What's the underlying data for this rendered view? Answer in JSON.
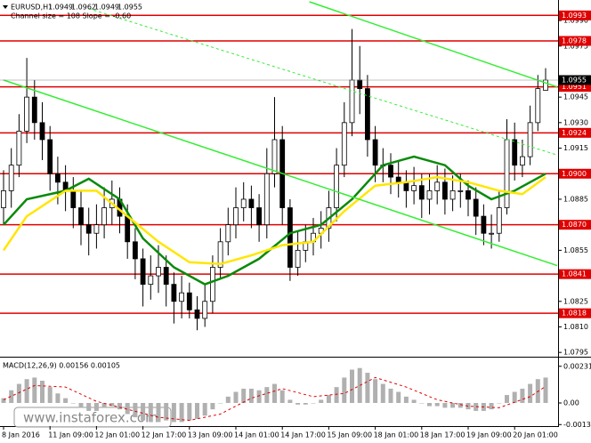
{
  "chart_data": {
    "type": "candlestick",
    "symbol": "EURUSD,H1",
    "ohlc_text": [
      "1.0949",
      "1.0962",
      "1.0949",
      "1.0955"
    ],
    "indicator_text": "Channel size = 108 Slope = -0.60",
    "watermark": "www.instaforex.com",
    "categories": [
      "8 Jan 2016",
      null,
      null,
      null,
      null,
      null,
      "11 Jan 09:00",
      null,
      null,
      null,
      null,
      null,
      "12 Jan 01:00",
      null,
      null,
      null,
      null,
      null,
      "12 Jan 17:00",
      null,
      null,
      null,
      null,
      null,
      "13 Jan 09:00",
      null,
      null,
      null,
      null,
      null,
      "14 Jan 01:00",
      null,
      null,
      null,
      null,
      null,
      "14 Jan 17:00",
      null,
      null,
      null,
      null,
      null,
      "15 Jan 09:00",
      null,
      null,
      null,
      null,
      null,
      "18 Jan 01:00",
      null,
      null,
      null,
      null,
      null,
      "18 Jan 17:00",
      null,
      null,
      null,
      null,
      null,
      "19 Jan 09:00",
      null,
      null,
      null,
      null,
      null,
      "20 Jan 01:00",
      null,
      null,
      null,
      null
    ],
    "open": [
      1.088,
      1.089,
      1.0905,
      1.0925,
      1.0945,
      1.093,
      1.092,
      1.09,
      1.0895,
      1.089,
      1.088,
      1.087,
      1.0865,
      1.087,
      1.088,
      1.0885,
      1.0875,
      1.086,
      1.085,
      1.0835,
      1.084,
      1.0845,
      1.0835,
      1.0825,
      1.083,
      1.082,
      1.0815,
      1.0825,
      1.0845,
      1.086,
      1.087,
      1.088,
      1.0885,
      1.088,
      1.087,
      1.09,
      1.092,
      1.088,
      1.0845,
      1.0855,
      1.086,
      1.0865,
      1.0868,
      1.088,
      1.0905,
      1.093,
      1.0955,
      1.095,
      1.092,
      1.0905,
      1.0905,
      1.0898,
      1.0895,
      1.089,
      1.0893,
      1.0885,
      1.089,
      1.0895,
      1.0885,
      1.089,
      1.089,
      1.0885,
      1.0875,
      1.0865,
      1.0865,
      1.088,
      1.092,
      1.0905,
      1.091,
      1.093,
      1.0949
    ],
    "high": [
      1.0902,
      1.0915,
      1.0935,
      1.0968,
      1.0955,
      1.0942,
      1.0928,
      1.091,
      1.0905,
      1.0898,
      1.089,
      1.088,
      1.0882,
      1.0892,
      1.0896,
      1.0892,
      1.0882,
      1.0868,
      1.0856,
      1.0852,
      1.0858,
      1.0852,
      1.0842,
      1.084,
      1.0836,
      1.0828,
      1.0835,
      1.0852,
      1.0868,
      1.088,
      1.0892,
      1.0895,
      1.0893,
      1.0888,
      1.0915,
      1.0945,
      1.0928,
      1.0885,
      1.0866,
      1.087,
      1.0874,
      1.0878,
      1.089,
      1.0915,
      1.0942,
      1.0985,
      1.0975,
      1.0958,
      1.0928,
      1.0915,
      1.0912,
      1.0908,
      1.0902,
      1.0904,
      1.09,
      1.09,
      1.0905,
      1.0903,
      1.0899,
      1.09,
      1.0896,
      1.0892,
      1.0882,
      1.0876,
      1.089,
      1.0932,
      1.093,
      1.092,
      1.094,
      1.0958,
      1.0962
    ],
    "low": [
      1.087,
      1.088,
      1.0898,
      1.0918,
      1.092,
      1.0908,
      1.089,
      1.0882,
      1.0878,
      1.0868,
      1.0858,
      1.0852,
      1.0856,
      1.0862,
      1.087,
      1.0865,
      1.085,
      1.0838,
      1.0822,
      1.0826,
      1.083,
      1.0822,
      1.0812,
      1.0815,
      1.0815,
      1.0808,
      1.081,
      1.0818,
      1.0838,
      1.0852,
      1.0862,
      1.0872,
      1.0868,
      1.086,
      1.0862,
      1.0892,
      1.087,
      1.0837,
      1.084,
      1.0848,
      1.0852,
      1.0856,
      1.086,
      1.0872,
      1.0898,
      1.0922,
      1.0935,
      1.091,
      1.0895,
      1.0895,
      1.0888,
      1.0886,
      1.088,
      1.0882,
      1.0874,
      1.0876,
      1.0882,
      1.0876,
      1.0878,
      1.088,
      1.0875,
      1.0864,
      1.0858,
      1.0856,
      1.086,
      1.0876,
      1.0896,
      1.0898,
      1.0905,
      1.0925,
      1.0949
    ],
    "close": [
      1.089,
      1.0905,
      1.0925,
      1.0945,
      1.093,
      1.092,
      1.09,
      1.0895,
      1.089,
      1.088,
      1.087,
      1.0865,
      1.087,
      1.088,
      1.0885,
      1.0875,
      1.086,
      1.085,
      1.0835,
      1.084,
      1.0845,
      1.0835,
      1.0825,
      1.083,
      1.082,
      1.0815,
      1.0825,
      1.0845,
      1.086,
      1.087,
      1.088,
      1.0885,
      1.088,
      1.087,
      1.09,
      1.092,
      1.088,
      1.0845,
      1.0855,
      1.086,
      1.0865,
      1.0868,
      1.088,
      1.0905,
      1.093,
      1.0955,
      1.095,
      1.092,
      1.0905,
      1.0905,
      1.0898,
      1.0895,
      1.089,
      1.0893,
      1.0885,
      1.089,
      1.0895,
      1.0885,
      1.089,
      1.089,
      1.0885,
      1.0875,
      1.0865,
      1.0865,
      1.088,
      1.092,
      1.0905,
      1.091,
      1.093,
      1.095,
      1.0955
    ],
    "ylim": [
      1.0793,
      1.1001
    ],
    "yticks": [
      {
        "value": 1.099,
        "label": "1.0990"
      },
      {
        "value": 1.0975,
        "label": "1.0975"
      },
      {
        "value": 1.0945,
        "label": "1.0945"
      },
      {
        "value": 1.093,
        "label": "1.0930"
      },
      {
        "value": 1.0915,
        "label": "1.0915"
      },
      {
        "value": 1.0885,
        "label": "1.0885"
      },
      {
        "value": 1.0855,
        "label": "1.0855"
      },
      {
        "value": 1.0825,
        "label": "1.0825"
      },
      {
        "value": 1.081,
        "label": "1.0810"
      },
      {
        "value": 1.0795,
        "label": "1.0795"
      }
    ],
    "levels": [
      {
        "value": 1.0993,
        "label": "1.0993"
      },
      {
        "value": 1.0978,
        "label": "1.0978"
      },
      {
        "value": 1.0951,
        "label": "1.0951"
      },
      {
        "value": 1.0924,
        "label": "1.0924"
      },
      {
        "value": 1.09,
        "label": "1.0900"
      },
      {
        "value": 1.087,
        "label": "1.0870"
      },
      {
        "value": 1.0841,
        "label": "1.0841"
      },
      {
        "value": 1.0818,
        "label": "1.0818"
      }
    ],
    "level_color": "#e00000",
    "current_price": {
      "value": 1.0955,
      "label": "1.0955"
    },
    "lines": [
      {
        "color": "#0a8a0a",
        "width": 2.5,
        "x": [
          0,
          3,
          8,
          11,
          15,
          18,
          22,
          26,
          29,
          33,
          37,
          41,
          45,
          49,
          53,
          57,
          60,
          63,
          66,
          70
        ],
        "values": [
          1.087,
          1.0885,
          1.089,
          1.0897,
          1.0885,
          1.0862,
          1.0845,
          1.0835,
          1.084,
          1.085,
          1.0865,
          1.087,
          1.0885,
          1.0905,
          1.091,
          1.0905,
          1.0893,
          1.0885,
          1.089,
          1.09
        ]
      },
      {
        "color": "#ffe600",
        "width": 2.5,
        "x": [
          0,
          3,
          8,
          12,
          16,
          20,
          24,
          28,
          32,
          36,
          40,
          44,
          48,
          52,
          56,
          60,
          64,
          67,
          70
        ],
        "values": [
          1.0855,
          1.0875,
          1.089,
          1.089,
          1.0875,
          1.086,
          1.0848,
          1.0847,
          1.0852,
          1.0858,
          1.086,
          1.0878,
          1.0893,
          1.0895,
          1.0898,
          1.0895,
          1.089,
          1.0888,
          1.0898
        ]
      },
      {
        "color": "#33ee33",
        "width": 1.5,
        "x": [
          0,
          71.5
        ],
        "values": [
          1.0955,
          1.0846
        ]
      },
      {
        "color": "#33ee33",
        "width": 1.5,
        "x": [
          39.5,
          71.5
        ],
        "values": [
          1.1001,
          1.0951
        ]
      },
      {
        "color": "#33ee33",
        "width": 1,
        "dash": true,
        "x": [
          11,
          71.5
        ],
        "values": [
          1.0997,
          1.0911
        ]
      }
    ],
    "macd": {
      "label": "MACD(12,26,9) 0.00156 0.00105",
      "ylim": [
        -0.0014,
        0.0028
      ],
      "yticks": [
        0.00231,
        {
          "value": 0,
          "label": "0.00"
        },
        -0.00136
      ],
      "hist_color": "#b0b0b0",
      "values": [
        0.0003,
        0.0008,
        0.0012,
        0.0015,
        0.0016,
        0.0014,
        0.001,
        0.0006,
        0.0003,
        0.0,
        -0.0003,
        -0.0005,
        -0.0005,
        -0.0003,
        -0.0002,
        -0.0004,
        -0.0007,
        -0.0009,
        -0.0011,
        -0.0012,
        -0.0012,
        -0.0011,
        -0.0012,
        -0.0012,
        -0.0011,
        -0.001,
        -0.0008,
        -0.0004,
        0.0,
        0.0004,
        0.0007,
        0.0009,
        0.0009,
        0.0008,
        0.001,
        0.0012,
        0.0008,
        0.0002,
        -0.0001,
        -0.0001,
        0.0,
        0.0002,
        0.0005,
        0.001,
        0.0016,
        0.0021,
        0.0022,
        0.0019,
        0.0015,
        0.0012,
        0.0009,
        0.0007,
        0.0004,
        0.0002,
        0.0,
        -0.0002,
        -0.0002,
        -0.0003,
        -0.0003,
        -0.0003,
        -0.0004,
        -0.0005,
        -0.0005,
        -0.0004,
        0.0,
        0.0005,
        0.0007,
        0.0009,
        0.0012,
        0.0015,
        0.0016
      ],
      "signal": {
        "color": "#e00000",
        "x": [
          0,
          4,
          8,
          12,
          16,
          20,
          24,
          28,
          32,
          36,
          40,
          44,
          48,
          52,
          56,
          60,
          64,
          68,
          70
        ],
        "values": [
          0.0002,
          0.0011,
          0.001,
          0.0001,
          -0.0004,
          -0.0009,
          -0.0011,
          -0.0007,
          0.0003,
          0.0009,
          0.0004,
          0.0006,
          0.0016,
          0.001,
          0.0002,
          -0.0002,
          -0.0003,
          0.0004,
          0.00105
        ]
      }
    }
  }
}
